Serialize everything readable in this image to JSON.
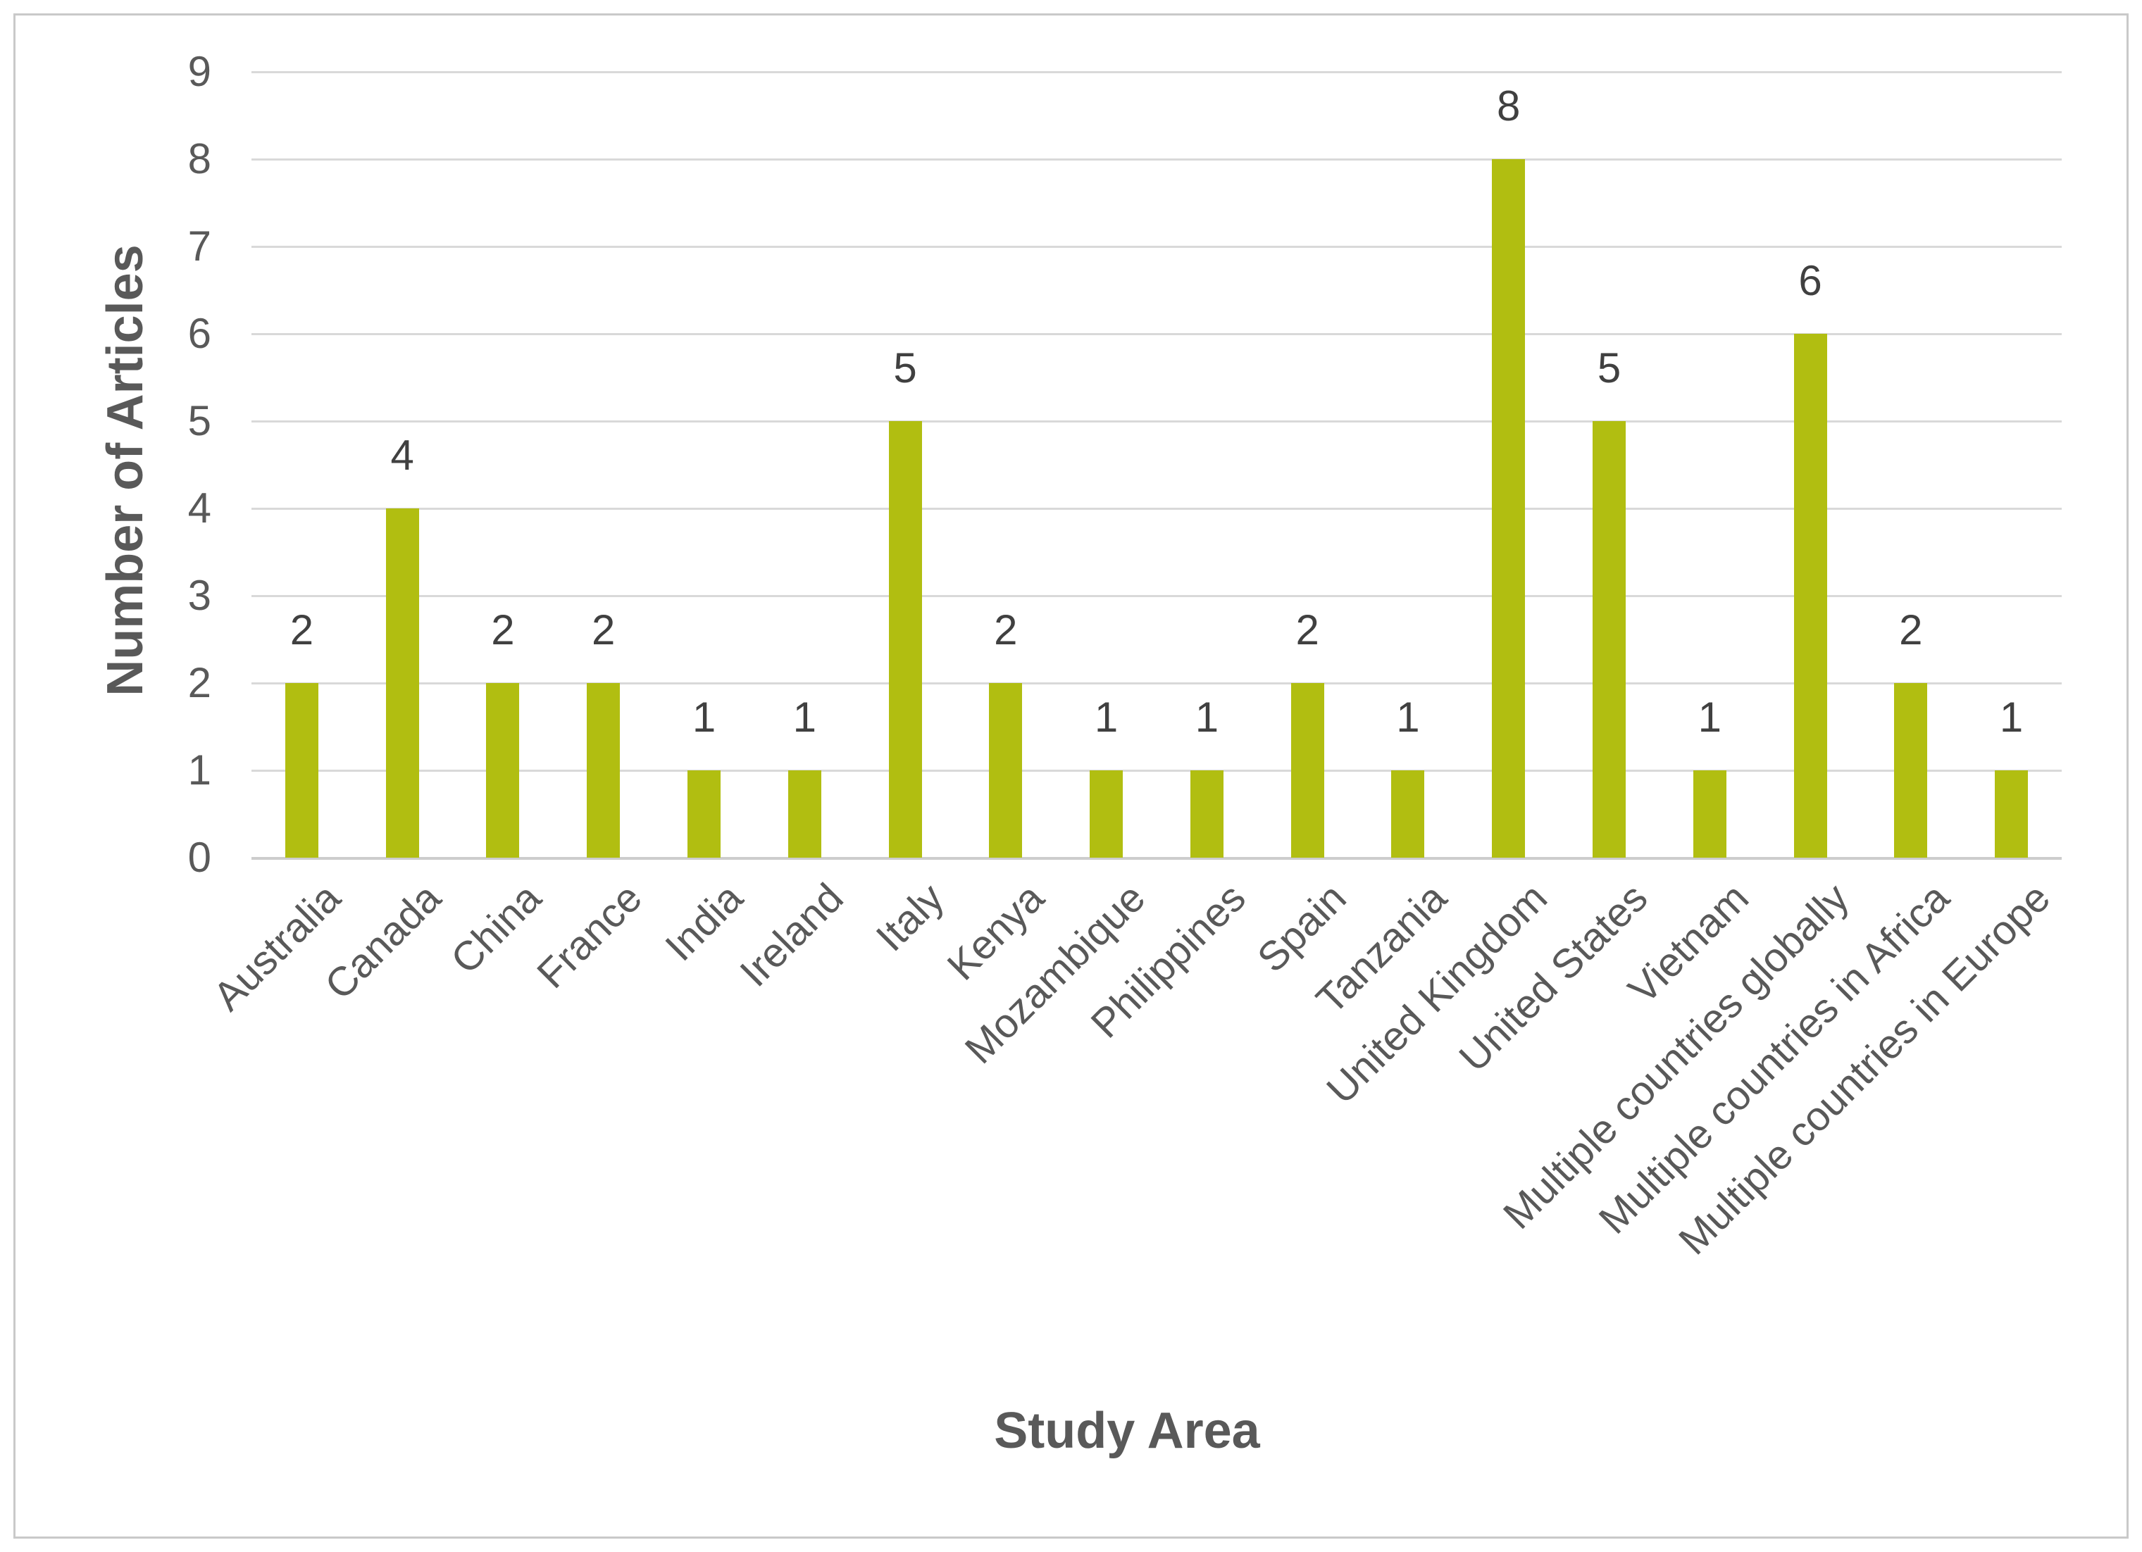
{
  "chart_data": {
    "type": "bar",
    "title": "",
    "xlabel": "Study Area",
    "ylabel": "Number of Articles",
    "categories": [
      "Australia",
      "Canada",
      "China",
      "France",
      "India",
      "Ireland",
      "Italy",
      "Kenya",
      "Mozambique",
      "Philippines",
      "Spain",
      "Tanzania",
      "United Kingdom",
      "United States",
      "Vietnam",
      "Multiple countries globally",
      "Multiple countries in Africa",
      "Multiple countries in Europe"
    ],
    "values": [
      2,
      4,
      2,
      2,
      1,
      1,
      5,
      2,
      1,
      1,
      2,
      1,
      8,
      5,
      1,
      6,
      2,
      1
    ],
    "data_labels_shown": true,
    "ylim": [
      0,
      9
    ],
    "yticks": [
      0,
      1,
      2,
      3,
      4,
      5,
      6,
      7,
      8,
      9
    ],
    "grid": "horizontal",
    "legend": "none",
    "x_tick_rotation_deg": 45,
    "colors": {
      "bar": "#B1BE11",
      "gridline": "#D9D9D9",
      "baseline": "#CDCDCD",
      "tick_label": "#595959",
      "data_label": "#404040",
      "axis_title": "#595959",
      "figure_border": "#C9C9C9",
      "background": "#FFFFFF"
    }
  }
}
